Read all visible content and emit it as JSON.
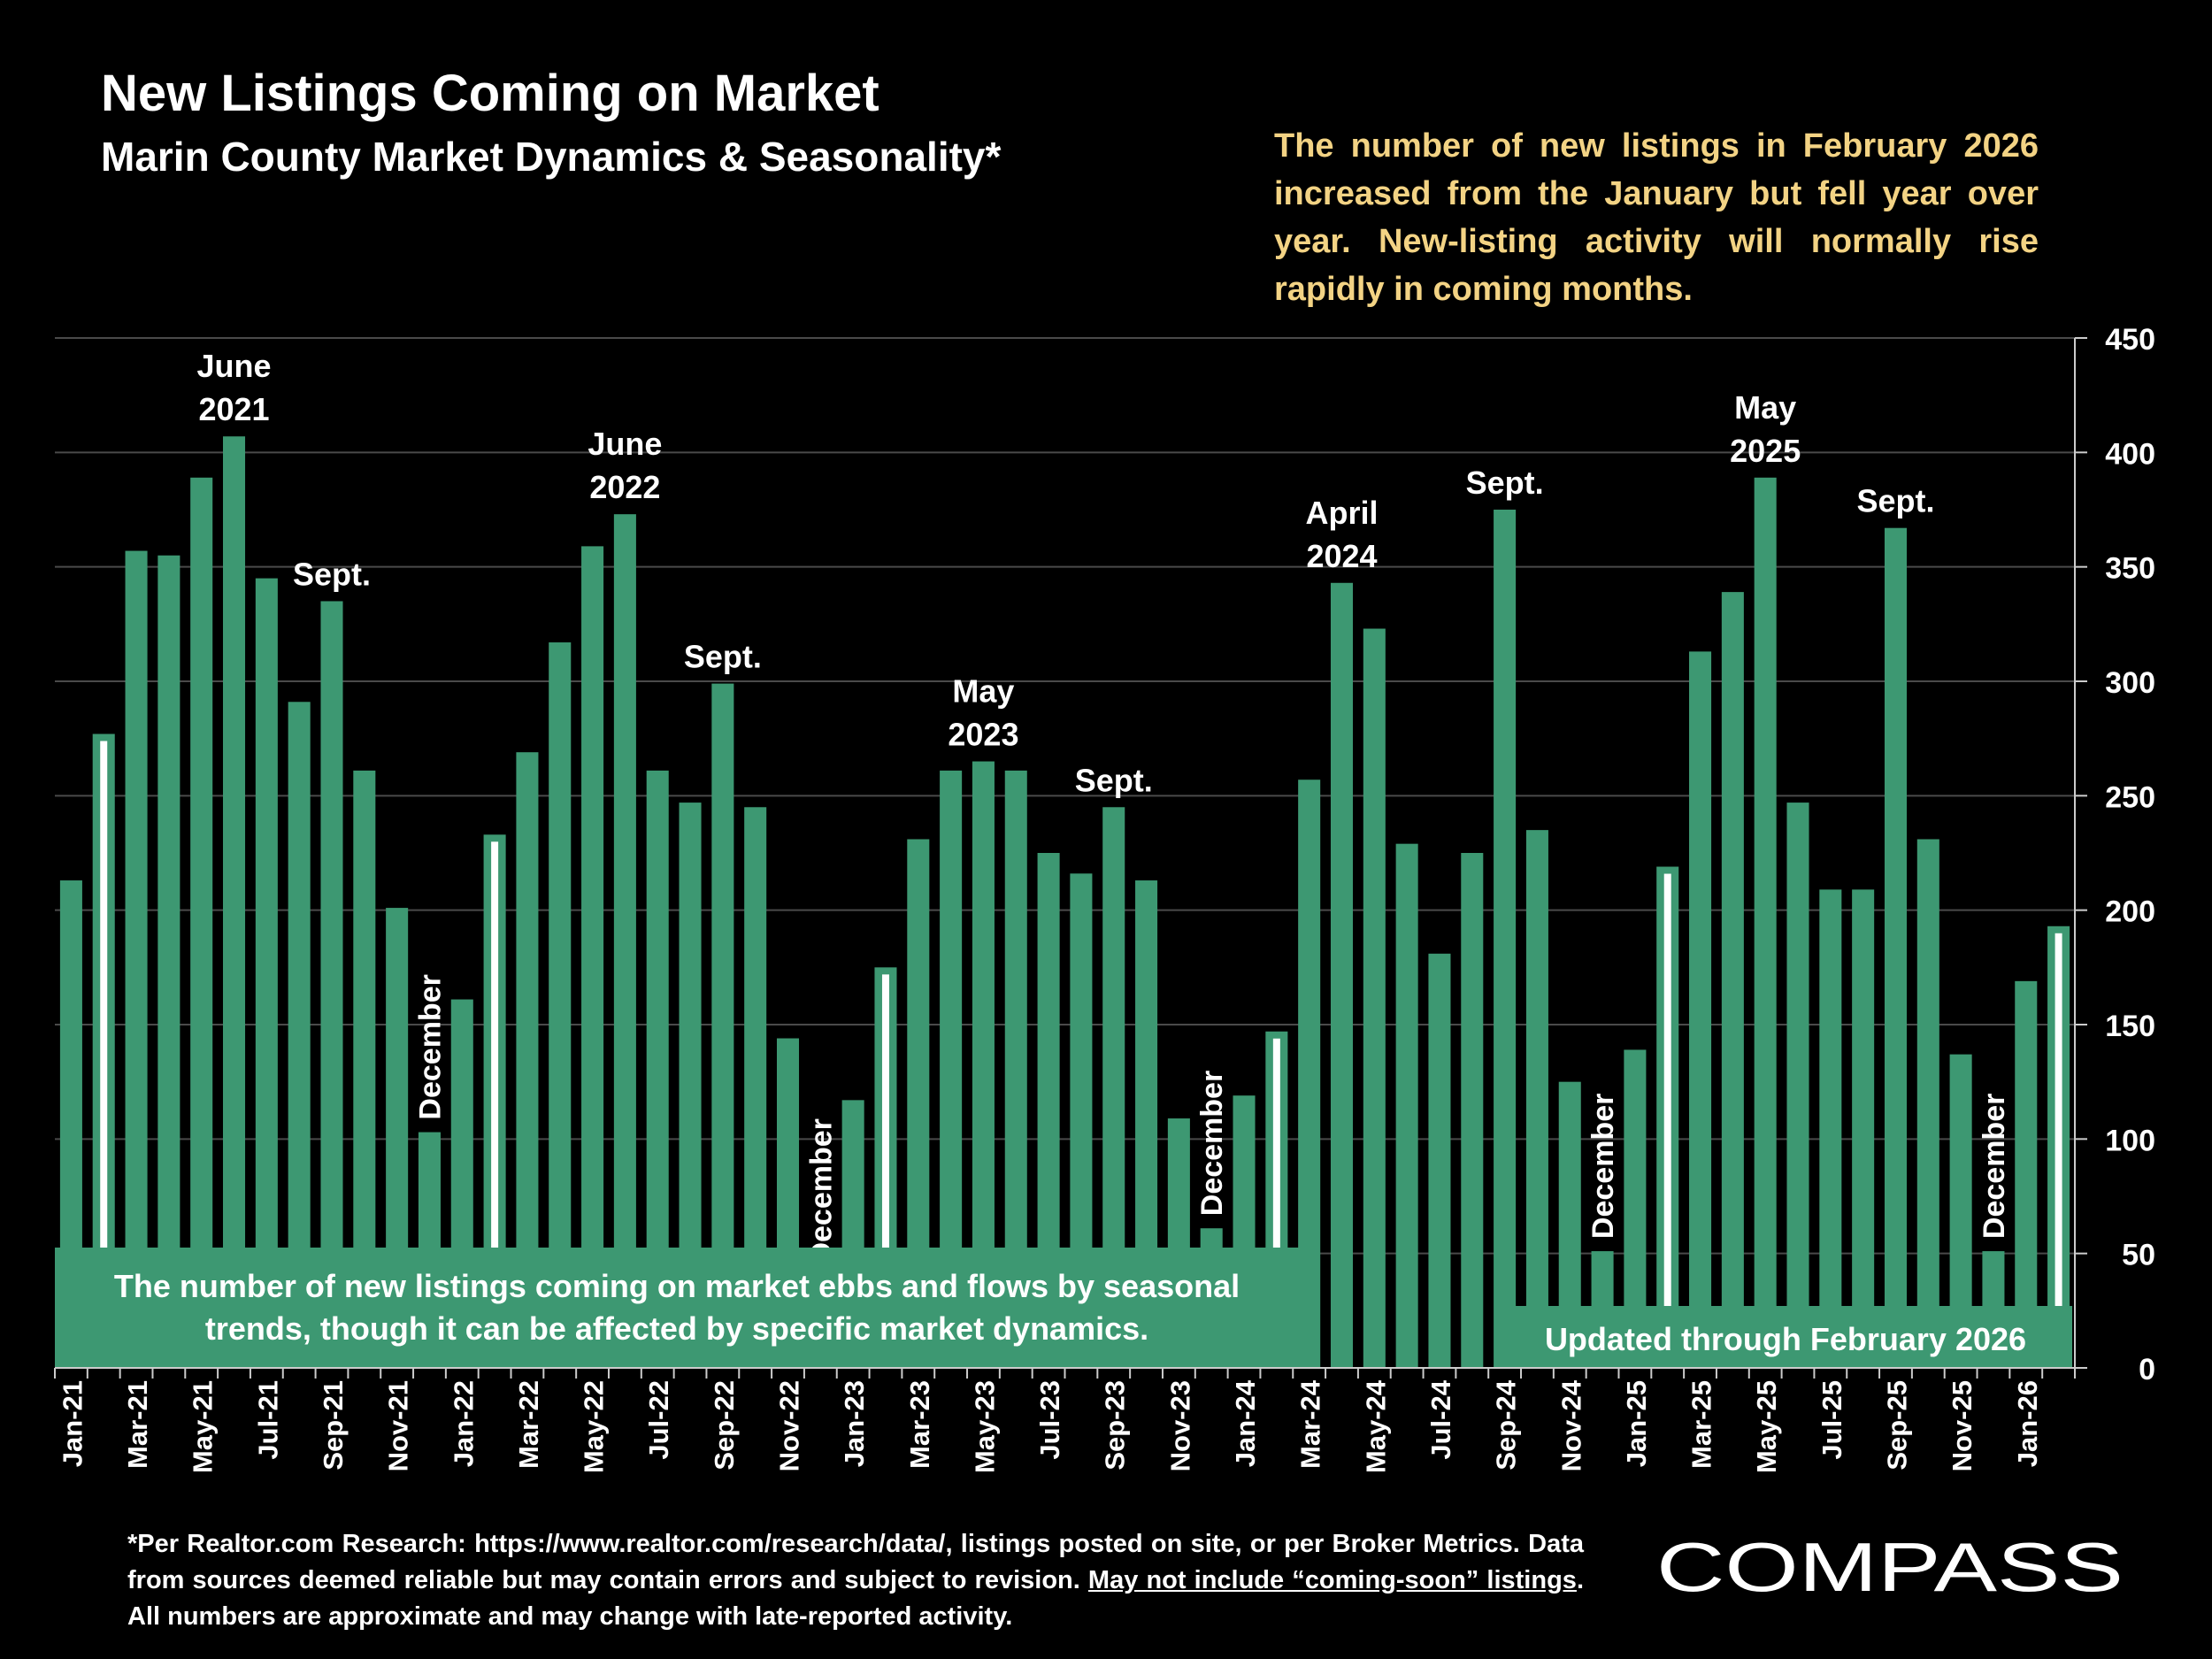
{
  "header": {
    "title": "New Listings Coming on Market",
    "subtitle": "Marin County Market Dynamics & Seasonality*"
  },
  "insight_text": "The number of new listings in February 2026 increased from the January but fell year over year. New-listing activity will normally rise rapidly in coming months.",
  "seasonal_note": [
    "The number of new listings coming on market ebbs and flows by seasonal",
    "trends, though it can be affected by specific market dynamics."
  ],
  "updated_note": "Updated through February 2026",
  "footnote": {
    "part1": "*Per Realtor.com Research:  https://www.realtor.com/research/data/, listings posted on site, or per Broker Metrics. Data from sources deemed reliable but may contain errors and subject to revision. ",
    "underlined": "May not include “coming-soon” listings",
    "part2": ". All numbers are approximate and may change with late-reported activity."
  },
  "logo_text": "COMPASS",
  "colors": {
    "bar": "#3d9872",
    "background": "#000000",
    "accent_text": "#f3d384",
    "grid": "#4a4a4a",
    "marker": "#ffffff"
  },
  "chart_data": {
    "type": "bar",
    "title": "New Listings Coming on Market",
    "ylim": [
      0,
      450
    ],
    "yticks": [
      0,
      50,
      100,
      150,
      200,
      250,
      300,
      350,
      400,
      450
    ],
    "grid": true,
    "y_axis_side": "right",
    "xtick_labels_shown": [
      "Jan-21",
      "Mar-21",
      "May-21",
      "Jul-21",
      "Sep-21",
      "Nov-21",
      "Jan-22",
      "Mar-22",
      "May-22",
      "Jul-22",
      "Sep-22",
      "Nov-22",
      "Jan-23",
      "Mar-23",
      "May-23",
      "Jul-23",
      "Sep-23",
      "Nov-23",
      "Jan-24",
      "Mar-24",
      "May-24",
      "Jul-24",
      "Sep-24",
      "Nov-24",
      "Jan-25",
      "Mar-25",
      "May-25",
      "Jul-25",
      "Sep-25",
      "Nov-25",
      "Jan-26"
    ],
    "categories": [
      "Jan-21",
      "Feb-21",
      "Mar-21",
      "Apr-21",
      "May-21",
      "Jun-21",
      "Jul-21",
      "Aug-21",
      "Sep-21",
      "Oct-21",
      "Nov-21",
      "Dec-21",
      "Jan-22",
      "Feb-22",
      "Mar-22",
      "Apr-22",
      "May-22",
      "Jun-22",
      "Jul-22",
      "Aug-22",
      "Sep-22",
      "Oct-22",
      "Nov-22",
      "Dec-22",
      "Jan-23",
      "Feb-23",
      "Mar-23",
      "Apr-23",
      "May-23",
      "Jun-23",
      "Jul-23",
      "Aug-23",
      "Sep-23",
      "Oct-23",
      "Nov-23",
      "Dec-23",
      "Jan-24",
      "Feb-24",
      "Mar-24",
      "Apr-24",
      "May-24",
      "Jun-24",
      "Jul-24",
      "Aug-24",
      "Sep-24",
      "Oct-24",
      "Nov-24",
      "Dec-24",
      "Jan-25",
      "Feb-25",
      "Mar-25",
      "Apr-25",
      "May-25",
      "Jun-25",
      "Jul-25",
      "Aug-25",
      "Sep-25",
      "Oct-25",
      "Nov-25",
      "Dec-25",
      "Jan-26",
      "Feb-26"
    ],
    "values": [
      213,
      277,
      357,
      355,
      389,
      407,
      345,
      291,
      335,
      261,
      201,
      103,
      161,
      233,
      269,
      317,
      359,
      373,
      261,
      247,
      299,
      245,
      144,
      40,
      117,
      175,
      231,
      261,
      265,
      261,
      225,
      216,
      245,
      213,
      109,
      61,
      119,
      147,
      257,
      343,
      323,
      229,
      181,
      225,
      375,
      235,
      125,
      51,
      139,
      219,
      313,
      339,
      389,
      247,
      209,
      209,
      367,
      231,
      137,
      51,
      169,
      193
    ],
    "february_marker_indices": [
      1,
      13,
      25,
      37,
      49,
      61
    ],
    "annotations": [
      {
        "index": 5,
        "lines": [
          "June",
          "2021"
        ],
        "orientation": "horizontal"
      },
      {
        "index": 8,
        "lines": [
          "Sept."
        ],
        "orientation": "horizontal"
      },
      {
        "index": 11,
        "lines": [
          "December"
        ],
        "orientation": "vertical"
      },
      {
        "index": 17,
        "lines": [
          "June",
          "2022"
        ],
        "orientation": "horizontal"
      },
      {
        "index": 20,
        "lines": [
          "Sept."
        ],
        "orientation": "horizontal"
      },
      {
        "index": 23,
        "lines": [
          "December"
        ],
        "orientation": "vertical"
      },
      {
        "index": 28,
        "lines": [
          "May",
          "2023"
        ],
        "orientation": "horizontal"
      },
      {
        "index": 32,
        "lines": [
          "Sept."
        ],
        "orientation": "horizontal"
      },
      {
        "index": 35,
        "lines": [
          "December"
        ],
        "orientation": "vertical"
      },
      {
        "index": 39,
        "lines": [
          "April",
          "2024"
        ],
        "orientation": "horizontal"
      },
      {
        "index": 44,
        "lines": [
          "Sept."
        ],
        "orientation": "horizontal"
      },
      {
        "index": 47,
        "lines": [
          "December"
        ],
        "orientation": "vertical"
      },
      {
        "index": 52,
        "lines": [
          "May",
          "2025"
        ],
        "orientation": "horizontal"
      },
      {
        "index": 56,
        "lines": [
          "Sept."
        ],
        "orientation": "horizontal"
      },
      {
        "index": 59,
        "lines": [
          "December"
        ],
        "orientation": "vertical"
      }
    ]
  }
}
